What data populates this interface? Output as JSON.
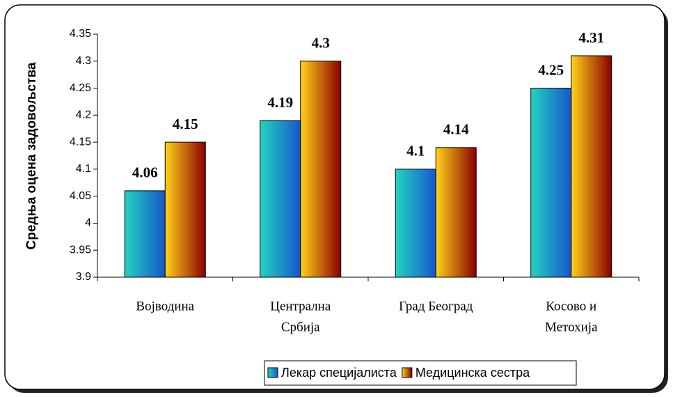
{
  "chart_data": {
    "type": "bar",
    "y_label": "Средња оцена задовољства",
    "categories": [
      [
        "Војводина"
      ],
      [
        "Централна",
        "Србија"
      ],
      [
        "Град Београд"
      ],
      [
        "Косово и",
        "Метохија"
      ]
    ],
    "series": [
      {
        "name": "Лекар специјалиста",
        "colors": [
          "#22d3c0",
          "#1657cc"
        ],
        "values": [
          4.06,
          4.19,
          4.1,
          4.25
        ]
      },
      {
        "name": "Медицинска сестра",
        "colors": [
          "#ffd21a",
          "#8a0000"
        ],
        "values": [
          4.15,
          4.3,
          4.14,
          4.31
        ]
      }
    ],
    "ylim": [
      3.9,
      4.35
    ],
    "yticks": [
      3.9,
      3.95,
      4,
      4.05,
      4.1,
      4.15,
      4.2,
      4.25,
      4.3,
      4.35
    ],
    "legend": "bottom"
  }
}
